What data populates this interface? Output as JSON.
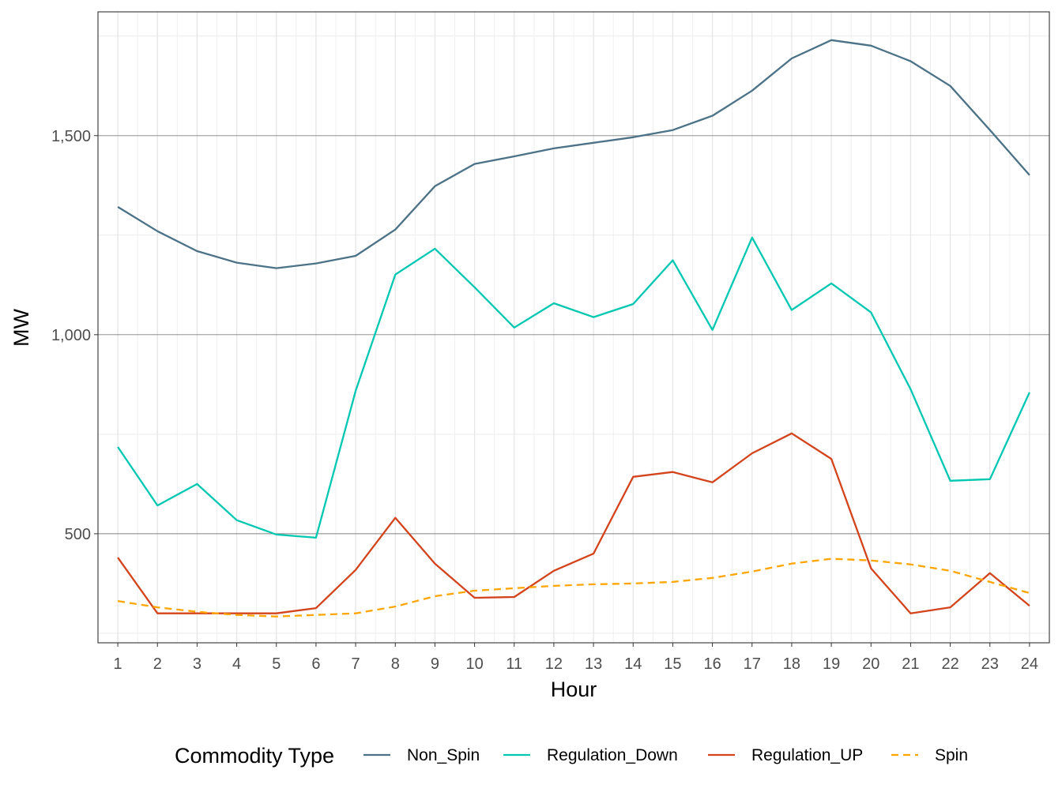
{
  "chart_data": {
    "type": "line",
    "xlabel": "Hour",
    "ylabel": "MW",
    "x": [
      1,
      2,
      3,
      4,
      5,
      6,
      7,
      8,
      9,
      10,
      11,
      12,
      13,
      14,
      15,
      16,
      17,
      18,
      19,
      20,
      21,
      22,
      23,
      24
    ],
    "x_tick_labels": [
      "1",
      "2",
      "3",
      "4",
      "5",
      "6",
      "7",
      "8",
      "9",
      "10",
      "11",
      "12",
      "13",
      "14",
      "15",
      "16",
      "17",
      "18",
      "19",
      "20",
      "21",
      "22",
      "23",
      "24"
    ],
    "y_ticks": [
      500,
      1000,
      1500
    ],
    "y_tick_labels": [
      "500",
      "1,000",
      "1,500"
    ],
    "ylim": [
      226,
      1811
    ],
    "xlim": [
      0.5,
      24.5
    ],
    "grid": true,
    "legend": {
      "title": "Commodity Type",
      "position": "bottom"
    },
    "series": [
      {
        "name": "Non_Spin",
        "color": "#4b7286",
        "dash": "solid",
        "values": [
          1321,
          1260,
          1210,
          1181,
          1167,
          1179,
          1198,
          1264,
          1373,
          1429,
          1448,
          1468,
          1482,
          1496,
          1514,
          1550,
          1613,
          1694,
          1740,
          1726,
          1687,
          1625,
          1514,
          1401
        ]
      },
      {
        "name": "Regulation_Down",
        "color": "#00c7b2",
        "dash": "solid",
        "values": [
          718,
          571,
          625,
          534,
          498,
          490,
          859,
          1151,
          1216,
          1119,
          1018,
          1079,
          1044,
          1077,
          1187,
          1012,
          1244,
          1062,
          1129,
          1056,
          863,
          633,
          637,
          855
        ]
      },
      {
        "name": "Regulation_UP",
        "color": "#d3441c",
        "dash": "solid",
        "values": [
          440,
          300,
          300,
          300,
          300,
          313,
          409,
          540,
          425,
          339,
          341,
          407,
          450,
          643,
          655,
          629,
          702,
          752,
          688,
          413,
          300,
          315,
          401,
          319
        ]
      },
      {
        "name": "Spin",
        "color": "#ffa500",
        "dash": "dashed",
        "values": [
          331,
          315,
          304,
          296,
          292,
          296,
          300,
          317,
          343,
          357,
          363,
          369,
          373,
          375,
          379,
          389,
          405,
          425,
          437,
          433,
          423,
          407,
          379,
          351
        ]
      }
    ]
  }
}
